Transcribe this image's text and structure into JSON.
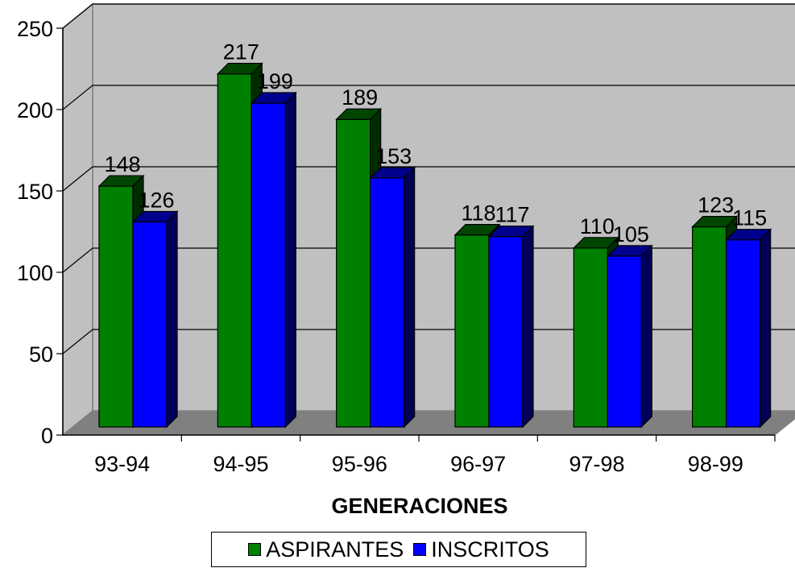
{
  "chart_data": {
    "type": "bar",
    "categories": [
      "93-94",
      "94-95",
      "95-96",
      "96-97",
      "97-98",
      "98-99"
    ],
    "series": [
      {
        "name": "ASPIRANTES",
        "values": [
          148,
          217,
          189,
          118,
          110,
          123
        ],
        "color": "#008000"
      },
      {
        "name": "INSCRITOS",
        "values": [
          126,
          199,
          153,
          117,
          105,
          115
        ],
        "color": "#0000FF"
      }
    ],
    "title": "",
    "xlabel": "GENERACIONES",
    "ylabel": "",
    "ylim": [
      0,
      250
    ],
    "yticks": [
      0,
      50,
      100,
      150,
      200,
      250
    ],
    "grid": true,
    "three_d": true,
    "legend_position": "bottom"
  }
}
